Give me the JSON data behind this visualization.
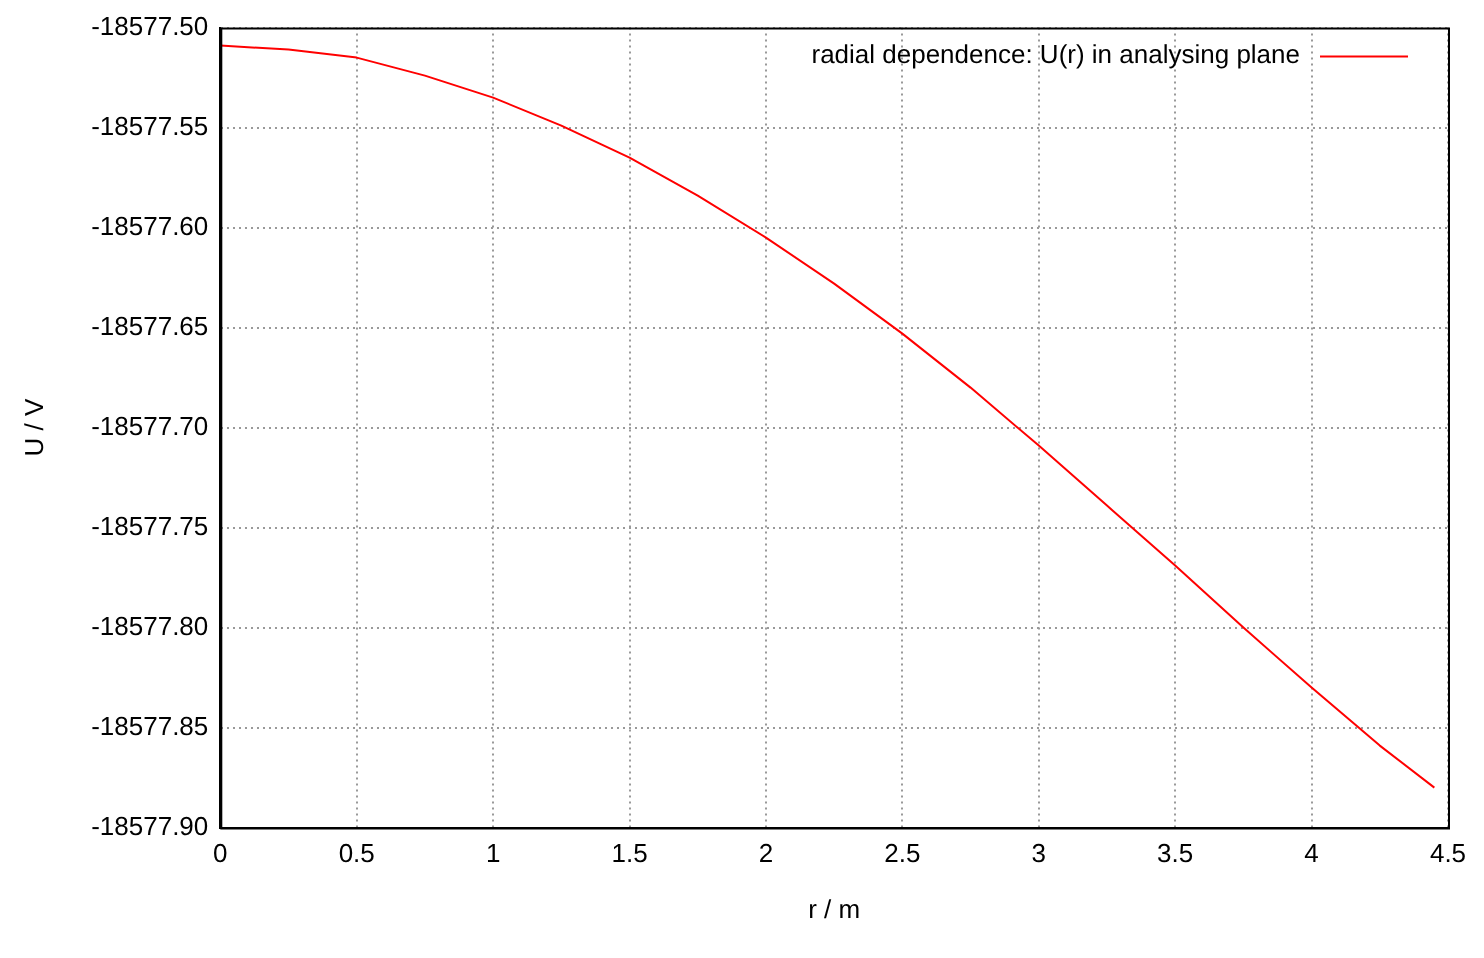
{
  "chart_data": {
    "type": "line",
    "xlabel": "r / m",
    "ylabel": "U / V",
    "x": [
      0,
      0.25,
      0.5,
      0.75,
      1,
      1.25,
      1.5,
      1.75,
      2,
      2.25,
      2.5,
      2.75,
      3,
      3.25,
      3.5,
      3.75,
      4,
      4.25,
      4.45
    ],
    "series": [
      {
        "name": "radial dependence: U(r) in analysing plane",
        "color": "#ff0000",
        "values": [
          -18577.509,
          -18577.511,
          -18577.515,
          -18577.524,
          -18577.535,
          -18577.549,
          -18577.565,
          -18577.584,
          -18577.605,
          -18577.628,
          -18577.653,
          -18577.68,
          -18577.709,
          -18577.739,
          -18577.769,
          -18577.8,
          -18577.83,
          -18577.859,
          -18577.88
        ]
      }
    ],
    "xlim": [
      0,
      4.5
    ],
    "xticks": [
      0,
      0.5,
      1,
      1.5,
      2,
      2.5,
      3,
      3.5,
      4,
      4.5
    ],
    "ylim": [
      -18577.9,
      -18577.5
    ],
    "yticks": [
      {
        "value": -18577.9,
        "label": "-18577.90"
      },
      {
        "value": -18577.85,
        "label": "-18577.85"
      },
      {
        "value": -18577.8,
        "label": "-18577.80"
      },
      {
        "value": -18577.75,
        "label": "-18577.75"
      },
      {
        "value": -18577.7,
        "label": "-18577.70"
      },
      {
        "value": -18577.65,
        "label": "-18577.65"
      },
      {
        "value": -18577.6,
        "label": "-18577.60"
      },
      {
        "value": -18577.55,
        "label": "-18577.55"
      },
      {
        "value": -18577.5,
        "label": "-18577.50"
      }
    ],
    "grid": true,
    "legend": "top right",
    "marker": "none",
    "line_style": "solid"
  }
}
